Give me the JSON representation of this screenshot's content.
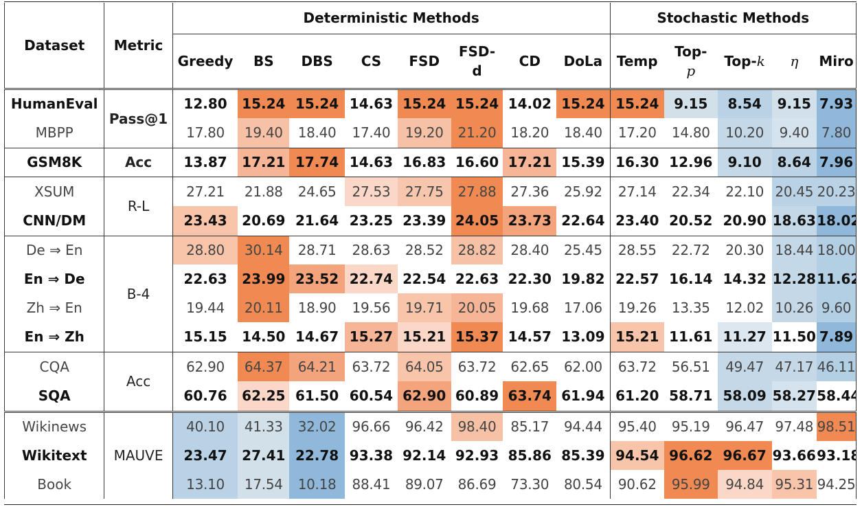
{
  "header": {
    "dataset": "Dataset",
    "metric": "Metric",
    "group_deterministic": "Deterministic Methods",
    "group_stochastic": "Stochastic Methods",
    "methods": [
      "Greedy",
      "BS",
      "DBS",
      "CS",
      "FSD",
      "FSD-d",
      "CD",
      "DoLa",
      "Temp",
      "Top-p",
      "Top-k",
      "η",
      "Miro"
    ]
  },
  "rows": [
    {
      "dataset": "HumanEval",
      "metric": "Pass@1",
      "bold": true,
      "values": [
        "12.80",
        "15.24",
        "15.24",
        "14.63",
        "15.24",
        "15.24",
        "14.02",
        "15.24",
        "15.24",
        "9.15",
        "8.54",
        "9.15",
        "7.93"
      ]
    },
    {
      "dataset": "MBPP",
      "metric": "",
      "bold": false,
      "values": [
        "17.80",
        "19.40",
        "18.40",
        "17.40",
        "19.20",
        "21.20",
        "18.20",
        "18.40",
        "17.20",
        "14.80",
        "10.20",
        "9.40",
        "7.80"
      ]
    },
    {
      "dataset": "GSM8K",
      "metric": "Acc",
      "bold": true,
      "values": [
        "13.87",
        "17.21",
        "17.74",
        "14.63",
        "16.83",
        "16.60",
        "17.21",
        "15.39",
        "16.30",
        "12.96",
        "9.10",
        "8.64",
        "7.96"
      ]
    },
    {
      "dataset": "XSUM",
      "metric": "R-L",
      "bold": false,
      "values": [
        "27.21",
        "21.88",
        "24.65",
        "27.53",
        "27.75",
        "27.88",
        "27.36",
        "25.92",
        "27.14",
        "22.34",
        "22.10",
        "20.45",
        "20.23"
      ]
    },
    {
      "dataset": "CNN/DM",
      "metric": "",
      "bold": true,
      "values": [
        "23.43",
        "20.69",
        "21.64",
        "23.25",
        "23.39",
        "24.05",
        "23.73",
        "22.64",
        "23.40",
        "20.52",
        "20.90",
        "18.63",
        "18.02"
      ]
    },
    {
      "dataset": "De ⇒ En",
      "metric": "B-4",
      "bold": false,
      "values": [
        "28.80",
        "30.14",
        "28.71",
        "28.63",
        "28.52",
        "28.82",
        "28.40",
        "25.45",
        "28.55",
        "22.72",
        "20.30",
        "18.44",
        "18.00"
      ]
    },
    {
      "dataset": "En ⇒ De",
      "metric": "",
      "bold": true,
      "values": [
        "22.63",
        "23.99",
        "23.52",
        "22.74",
        "22.54",
        "22.63",
        "22.30",
        "19.82",
        "22.57",
        "16.14",
        "14.32",
        "12.28",
        "11.62"
      ]
    },
    {
      "dataset": "Zh ⇒ En",
      "metric": "",
      "bold": false,
      "values": [
        "19.44",
        "20.11",
        "18.90",
        "19.56",
        "19.71",
        "20.05",
        "19.68",
        "17.06",
        "19.26",
        "13.35",
        "12.02",
        "10.26",
        "9.60"
      ]
    },
    {
      "dataset": "En ⇒ Zh",
      "metric": "",
      "bold": true,
      "values": [
        "15.15",
        "14.50",
        "14.67",
        "15.27",
        "15.21",
        "15.37",
        "14.57",
        "13.09",
        "15.21",
        "11.61",
        "11.27",
        "11.50",
        "7.89"
      ]
    },
    {
      "dataset": "CQA",
      "metric": "Acc",
      "bold": false,
      "values": [
        "62.90",
        "64.37",
        "64.21",
        "63.72",
        "64.05",
        "63.72",
        "62.65",
        "62.00",
        "63.72",
        "56.51",
        "49.47",
        "47.17",
        "46.11"
      ]
    },
    {
      "dataset": "SQA",
      "metric": "",
      "bold": true,
      "values": [
        "60.76",
        "62.25",
        "61.50",
        "60.54",
        "62.90",
        "60.89",
        "63.74",
        "61.94",
        "61.20",
        "58.71",
        "58.09",
        "58.27",
        "58.44"
      ]
    },
    {
      "dataset": "Wikinews",
      "metric": "MAUVE",
      "bold": false,
      "values": [
        "40.10",
        "41.33",
        "32.02",
        "96.66",
        "96.42",
        "98.40",
        "85.17",
        "94.44",
        "95.40",
        "95.19",
        "96.47",
        "97.48",
        "98.51"
      ]
    },
    {
      "dataset": "Wikitext",
      "metric": "",
      "bold": true,
      "values": [
        "23.47",
        "27.41",
        "22.78",
        "93.38",
        "92.14",
        "92.93",
        "85.86",
        "85.39",
        "94.54",
        "96.62",
        "96.67",
        "93.66",
        "93.18"
      ]
    },
    {
      "dataset": "Book",
      "metric": "",
      "bold": false,
      "values": [
        "13.10",
        "17.54",
        "10.18",
        "88.41",
        "89.07",
        "86.69",
        "73.30",
        "80.54",
        "90.62",
        "95.99",
        "94.84",
        "95.31",
        "94.25"
      ]
    }
  ],
  "cell_colors": [
    [
      "#ffffff",
      "#f08a52",
      "#f08a52",
      "#ffffff",
      "#f08a52",
      "#f08a52",
      "#ffffff",
      "#f08a52",
      "#f08a52",
      "#d2e0ea",
      "#b9d2e5",
      "#d2e0ea",
      "#8fb8da"
    ],
    [
      "#ffffff",
      "#f7c1a6",
      "#ffffff",
      "#ffffff",
      "#f7c1a6",
      "#f08a52",
      "#ffffff",
      "#ffffff",
      "#ffffff",
      "#ffffff",
      "#c4d8e7",
      "#d5e3ee",
      "#8fb8da"
    ],
    [
      "#ffffff",
      "#f6b596",
      "#f08a52",
      "#ffffff",
      "#ffffff",
      "#ffffff",
      "#f6b596",
      "#ffffff",
      "#ffffff",
      "#ffffff",
      "#c4d8e7",
      "#bcd3e6",
      "#8fb8da"
    ],
    [
      "#ffffff",
      "#ffffff",
      "#ffffff",
      "#fad7c6",
      "#f7c6ad",
      "#f08a52",
      "#ffffff",
      "#ffffff",
      "#ffffff",
      "#ffffff",
      "#ffffff",
      "#b9d2e5",
      "#b9d2e5"
    ],
    [
      "#f8c5ab",
      "#ffffff",
      "#ffffff",
      "#ffffff",
      "#ffffff",
      "#f08a52",
      "#f4a47c",
      "#ffffff",
      "#ffffff",
      "#ffffff",
      "#ffffff",
      "#c4d8e7",
      "#8fb8da"
    ],
    [
      "#f8c5ab",
      "#f08a52",
      "#ffffff",
      "#ffffff",
      "#ffffff",
      "#f7c1a6",
      "#ffffff",
      "#ffffff",
      "#ffffff",
      "#ffffff",
      "#ffffff",
      "#c4d8e7",
      "#b3cfe4"
    ],
    [
      "#ffffff",
      "#f08a52",
      "#f4a47c",
      "#fad7c6",
      "#ffffff",
      "#ffffff",
      "#ffffff",
      "#ffffff",
      "#ffffff",
      "#ffffff",
      "#ffffff",
      "#c4d8e7",
      "#b3cfe4"
    ],
    [
      "#ffffff",
      "#f08a52",
      "#ffffff",
      "#ffffff",
      "#f8c5ab",
      "#f6b596",
      "#ffffff",
      "#ffffff",
      "#ffffff",
      "#ffffff",
      "#ffffff",
      "#c4d8e7",
      "#b3cfe4"
    ],
    [
      "#ffffff",
      "#ffffff",
      "#ffffff",
      "#f6b596",
      "#fad7c6",
      "#f08a52",
      "#ffffff",
      "#ffffff",
      "#f8c5ab",
      "#ffffff",
      "#dce7ef",
      "#ffffff",
      "#8fb8da"
    ],
    [
      "#ffffff",
      "#f08a52",
      "#f4a47c",
      "#ffffff",
      "#f8c5ab",
      "#ffffff",
      "#ffffff",
      "#ffffff",
      "#ffffff",
      "#ffffff",
      "#c4d8e7",
      "#c4d8e7",
      "#b3cfe4"
    ],
    [
      "#ffffff",
      "#fad7c6",
      "#ffffff",
      "#ffffff",
      "#f4a47c",
      "#ffffff",
      "#f08a52",
      "#ffffff",
      "#ffffff",
      "#ffffff",
      "#c4d8e7",
      "#d5e3ee",
      "#ffffff"
    ],
    [
      "#b9d2e5",
      "#d2e0ea",
      "#8fb8da",
      "#ffffff",
      "#ffffff",
      "#f7c1a6",
      "#ffffff",
      "#ffffff",
      "#ffffff",
      "#ffffff",
      "#ffffff",
      "#ffffff",
      "#f08a52"
    ],
    [
      "#b9d2e5",
      "#d2e0ea",
      "#8fb8da",
      "#ffffff",
      "#ffffff",
      "#ffffff",
      "#ffffff",
      "#ffffff",
      "#f8c5ab",
      "#f08a52",
      "#f08a52",
      "#ffffff",
      "#ffffff"
    ],
    [
      "#b9d2e5",
      "#d2e0ea",
      "#8fb8da",
      "#ffffff",
      "#ffffff",
      "#ffffff",
      "#ffffff",
      "#ffffff",
      "#ffffff",
      "#f08a52",
      "#fad7c6",
      "#f8c5ab",
      "#ffffff"
    ]
  ]
}
